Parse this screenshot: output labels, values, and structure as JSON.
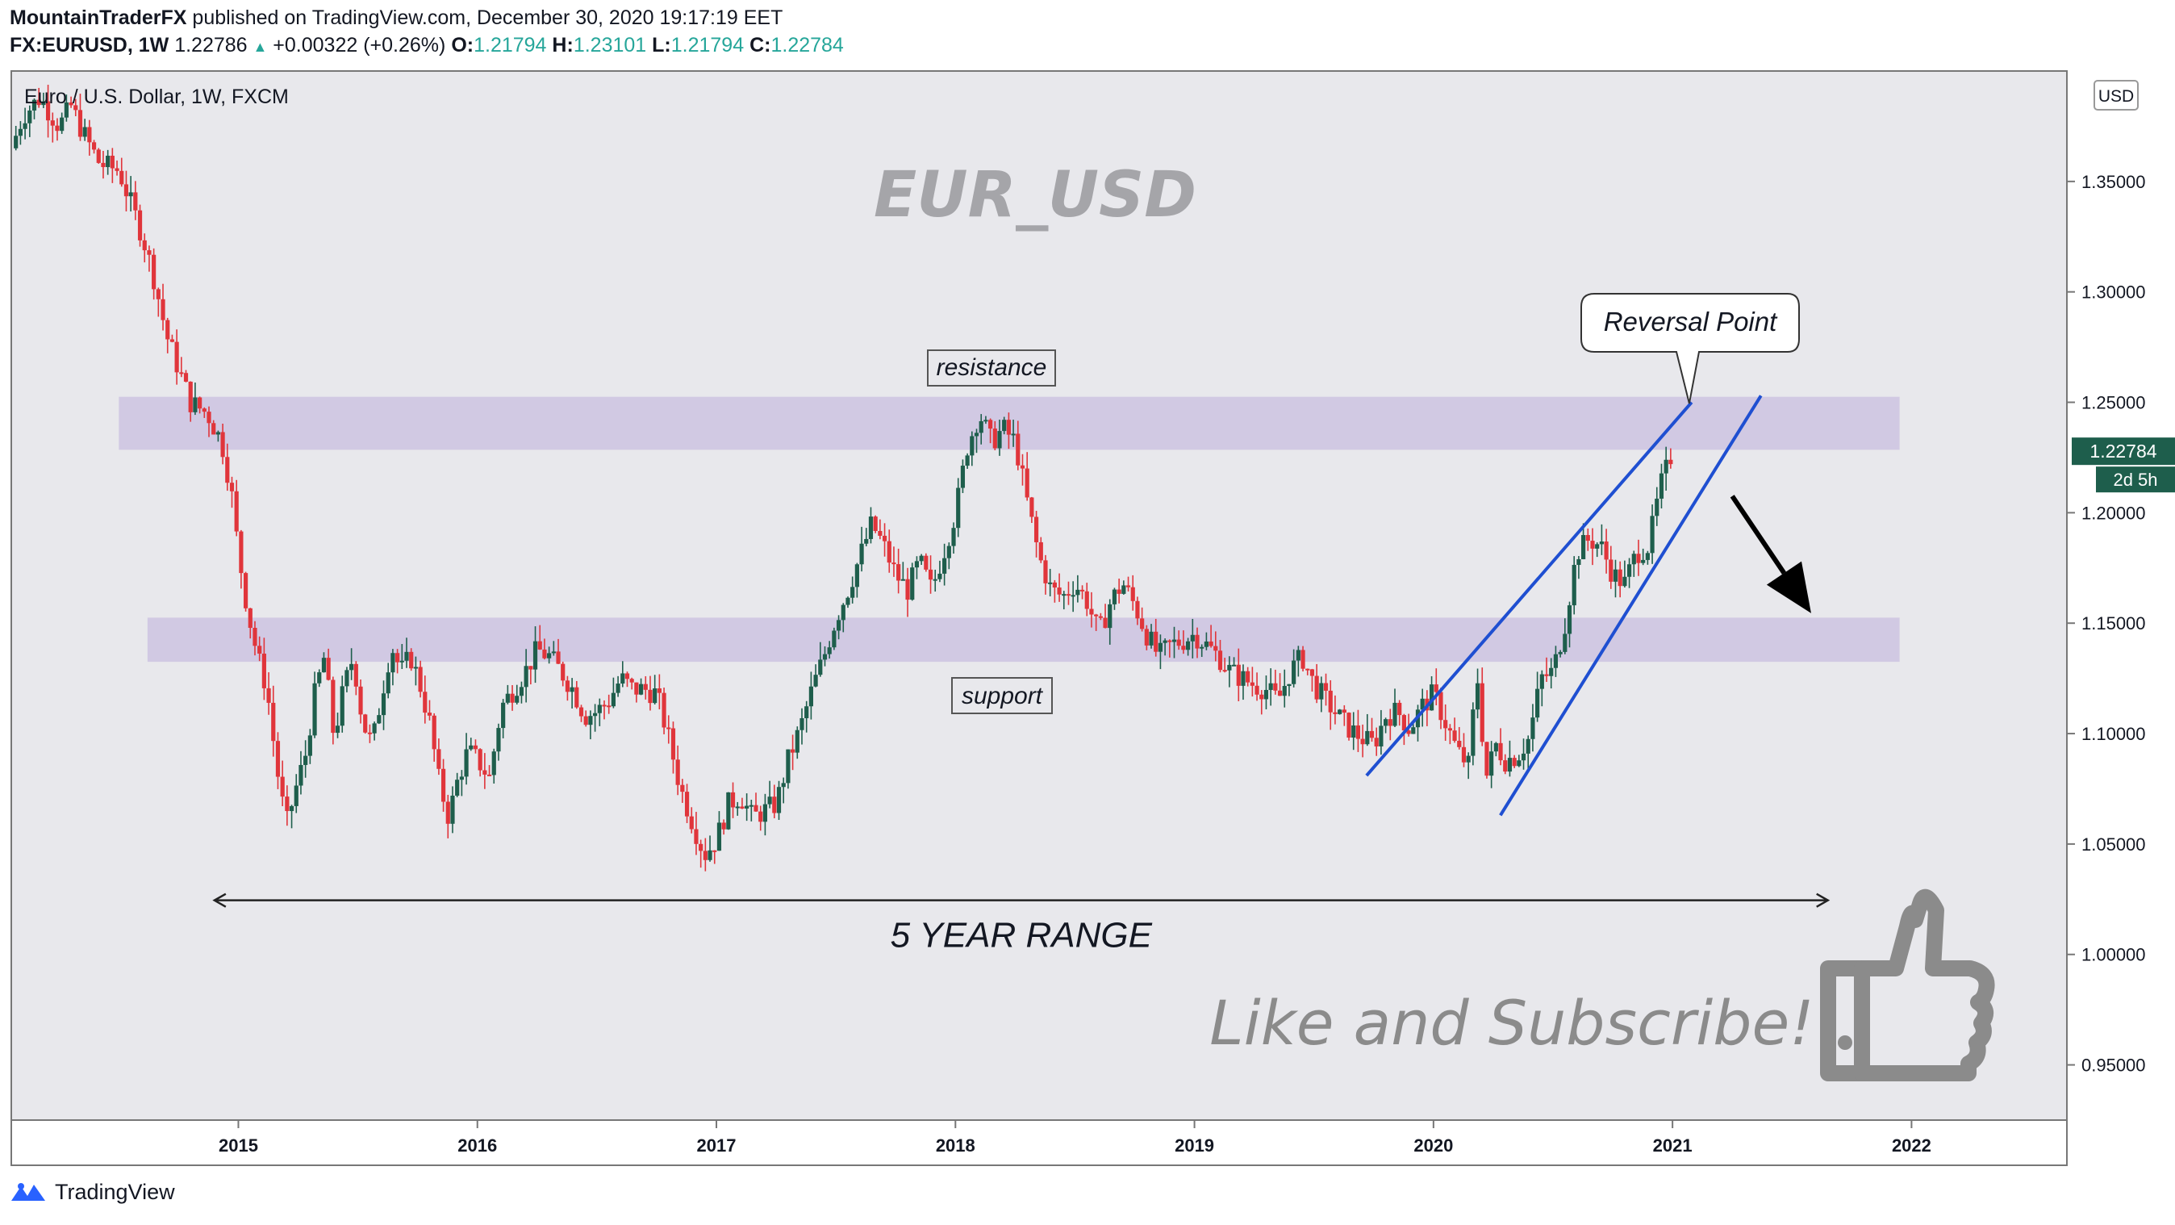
{
  "header": {
    "author": "MountainTraderFX",
    "published": "published on TradingView.com, December 30, 2020 19:17:19 EET",
    "symbol": "FX:EURUSD, 1W",
    "last": "1.22786",
    "change_arrow": "▲",
    "change": "+0.00322 (+0.26%)",
    "o_label": "O:",
    "o": "1.21794",
    "h_label": "H:",
    "h": "1.23101",
    "l_label": "L:",
    "l": "1.21794",
    "c_label": "C:",
    "c": "1.22784"
  },
  "footer": {
    "brand": "TradingView",
    "logo_icon": "tradingview-logo-icon"
  },
  "colors": {
    "up": "#1e5e4c",
    "down": "#e0353b",
    "zone": "#cdc3e2",
    "plot_bg": "#e8e8ec",
    "channel": "#1f4fd1",
    "price_tag": "#1e5e4c",
    "annotation_gray": "#9e9e9e"
  },
  "chart_data": {
    "type": "candlestick",
    "title": "Euro / U.S. Dollar, 1W, FXCM",
    "watermark": "EUR_USD",
    "currency_badge": "USD",
    "x_ticks": [
      "2015",
      "2016",
      "2017",
      "2018",
      "2019",
      "2020",
      "2021",
      "2022"
    ],
    "y_ticks": [
      "0.95000",
      "1.00000",
      "1.05000",
      "1.10000",
      "1.15000",
      "1.20000",
      "1.25000",
      "1.30000",
      "1.35000"
    ],
    "y_range": [
      0.925,
      1.4
    ],
    "x_range": [
      2014.05,
      2022.65
    ],
    "last_price": "1.22784",
    "countdown": "2d 5h",
    "zones": [
      {
        "name": "resistance",
        "label": "resistance",
        "from": 2014.5,
        "to": 2021.95,
        "low": 1.2285,
        "high": 1.2525
      },
      {
        "name": "support",
        "label": "support",
        "from": 2014.62,
        "to": 2021.95,
        "low": 1.1325,
        "high": 1.1525
      }
    ],
    "channel_lines": [
      {
        "x1": 2019.72,
        "y1": 1.081,
        "x2": 2021.08,
        "y2": 1.25
      },
      {
        "x1": 2020.28,
        "y1": 1.063,
        "x2": 2021.37,
        "y2": 1.253
      }
    ],
    "callout": {
      "text": "Reversal Point",
      "x": 2021.07,
      "y": 1.2495
    },
    "range_arrow": {
      "from": 2014.9,
      "to": 2021.65,
      "y": 1.0245,
      "label": "5 YEAR RANGE"
    },
    "down_arrow": {
      "x1": 2021.25,
      "y1": 1.2075,
      "x2": 2021.58,
      "y2": 1.1545
    },
    "cta": "Like and Subscribe!",
    "cta_icon": "thumbs-up-icon",
    "path": [
      [
        2014.05,
        1.365
      ],
      [
        2014.1,
        1.38
      ],
      [
        2014.17,
        1.388
      ],
      [
        2014.25,
        1.375
      ],
      [
        2014.3,
        1.384
      ],
      [
        2014.35,
        1.372
      ],
      [
        2014.42,
        1.358
      ],
      [
        2014.5,
        1.355
      ],
      [
        2014.55,
        1.34
      ],
      [
        2014.6,
        1.325
      ],
      [
        2014.65,
        1.305
      ],
      [
        2014.7,
        1.28
      ],
      [
        2014.75,
        1.265
      ],
      [
        2014.8,
        1.25
      ],
      [
        2014.87,
        1.245
      ],
      [
        2014.93,
        1.232
      ],
      [
        2014.97,
        1.21
      ],
      [
        2015.0,
        1.182
      ],
      [
        2015.04,
        1.155
      ],
      [
        2015.08,
        1.135
      ],
      [
        2015.12,
        1.12
      ],
      [
        2015.16,
        1.085
      ],
      [
        2015.2,
        1.058
      ],
      [
        2015.24,
        1.075
      ],
      [
        2015.28,
        1.09
      ],
      [
        2015.32,
        1.118
      ],
      [
        2015.36,
        1.135
      ],
      [
        2015.4,
        1.098
      ],
      [
        2015.44,
        1.12
      ],
      [
        2015.48,
        1.135
      ],
      [
        2015.52,
        1.105
      ],
      [
        2015.56,
        1.095
      ],
      [
        2015.6,
        1.118
      ],
      [
        2015.64,
        1.14
      ],
      [
        2015.68,
        1.128
      ],
      [
        2015.72,
        1.135
      ],
      [
        2015.76,
        1.122
      ],
      [
        2015.8,
        1.105
      ],
      [
        2015.84,
        1.078
      ],
      [
        2015.88,
        1.062
      ],
      [
        2015.92,
        1.08
      ],
      [
        2015.96,
        1.092
      ],
      [
        2016.0,
        1.088
      ],
      [
        2016.05,
        1.08
      ],
      [
        2016.1,
        1.112
      ],
      [
        2016.15,
        1.12
      ],
      [
        2016.2,
        1.128
      ],
      [
        2016.25,
        1.138
      ],
      [
        2016.3,
        1.135
      ],
      [
        2016.35,
        1.128
      ],
      [
        2016.4,
        1.12
      ],
      [
        2016.45,
        1.108
      ],
      [
        2016.5,
        1.11
      ],
      [
        2016.55,
        1.115
      ],
      [
        2016.6,
        1.125
      ],
      [
        2016.65,
        1.12
      ],
      [
        2016.7,
        1.12
      ],
      [
        2016.75,
        1.118
      ],
      [
        2016.8,
        1.098
      ],
      [
        2016.85,
        1.075
      ],
      [
        2016.9,
        1.06
      ],
      [
        2016.95,
        1.045
      ],
      [
        2017.0,
        1.052
      ],
      [
        2017.05,
        1.068
      ],
      [
        2017.1,
        1.072
      ],
      [
        2017.15,
        1.062
      ],
      [
        2017.2,
        1.065
      ],
      [
        2017.25,
        1.068
      ],
      [
        2017.3,
        1.088
      ],
      [
        2017.35,
        1.102
      ],
      [
        2017.4,
        1.12
      ],
      [
        2017.45,
        1.135
      ],
      [
        2017.5,
        1.152
      ],
      [
        2017.55,
        1.165
      ],
      [
        2017.6,
        1.18
      ],
      [
        2017.65,
        1.195
      ],
      [
        2017.7,
        1.185
      ],
      [
        2017.75,
        1.172
      ],
      [
        2017.8,
        1.165
      ],
      [
        2017.85,
        1.178
      ],
      [
        2017.9,
        1.165
      ],
      [
        2017.95,
        1.182
      ],
      [
        2018.0,
        1.2
      ],
      [
        2018.05,
        1.23
      ],
      [
        2018.1,
        1.245
      ],
      [
        2018.15,
        1.232
      ],
      [
        2018.2,
        1.238
      ],
      [
        2018.25,
        1.232
      ],
      [
        2018.3,
        1.205
      ],
      [
        2018.35,
        1.18
      ],
      [
        2018.4,
        1.165
      ],
      [
        2018.45,
        1.162
      ],
      [
        2018.5,
        1.168
      ],
      [
        2018.55,
        1.16
      ],
      [
        2018.6,
        1.145
      ],
      [
        2018.65,
        1.16
      ],
      [
        2018.7,
        1.168
      ],
      [
        2018.75,
        1.158
      ],
      [
        2018.8,
        1.145
      ],
      [
        2018.85,
        1.135
      ],
      [
        2018.9,
        1.14
      ],
      [
        2018.95,
        1.142
      ],
      [
        2019.0,
        1.145
      ],
      [
        2019.05,
        1.14
      ],
      [
        2019.1,
        1.135
      ],
      [
        2019.15,
        1.128
      ],
      [
        2019.2,
        1.125
      ],
      [
        2019.25,
        1.122
      ],
      [
        2019.3,
        1.12
      ],
      [
        2019.35,
        1.115
      ],
      [
        2019.4,
        1.128
      ],
      [
        2019.45,
        1.135
      ],
      [
        2019.5,
        1.122
      ],
      [
        2019.55,
        1.115
      ],
      [
        2019.6,
        1.108
      ],
      [
        2019.65,
        1.102
      ],
      [
        2019.7,
        1.098
      ],
      [
        2019.75,
        1.095
      ],
      [
        2019.8,
        1.108
      ],
      [
        2019.85,
        1.11
      ],
      [
        2019.9,
        1.102
      ],
      [
        2019.95,
        1.112
      ],
      [
        2020.0,
        1.118
      ],
      [
        2020.05,
        1.105
      ],
      [
        2020.1,
        1.092
      ],
      [
        2020.15,
        1.085
      ],
      [
        2020.18,
        1.13
      ],
      [
        2020.22,
        1.08
      ],
      [
        2020.26,
        1.095
      ],
      [
        2020.3,
        1.088
      ],
      [
        2020.35,
        1.09
      ],
      [
        2020.4,
        1.098
      ],
      [
        2020.45,
        1.125
      ],
      [
        2020.5,
        1.128
      ],
      [
        2020.55,
        1.15
      ],
      [
        2020.6,
        1.182
      ],
      [
        2020.65,
        1.188
      ],
      [
        2020.7,
        1.185
      ],
      [
        2020.75,
        1.172
      ],
      [
        2020.8,
        1.168
      ],
      [
        2020.85,
        1.182
      ],
      [
        2020.9,
        1.185
      ],
      [
        2020.95,
        1.212
      ],
      [
        2021.0,
        1.2278
      ]
    ]
  }
}
